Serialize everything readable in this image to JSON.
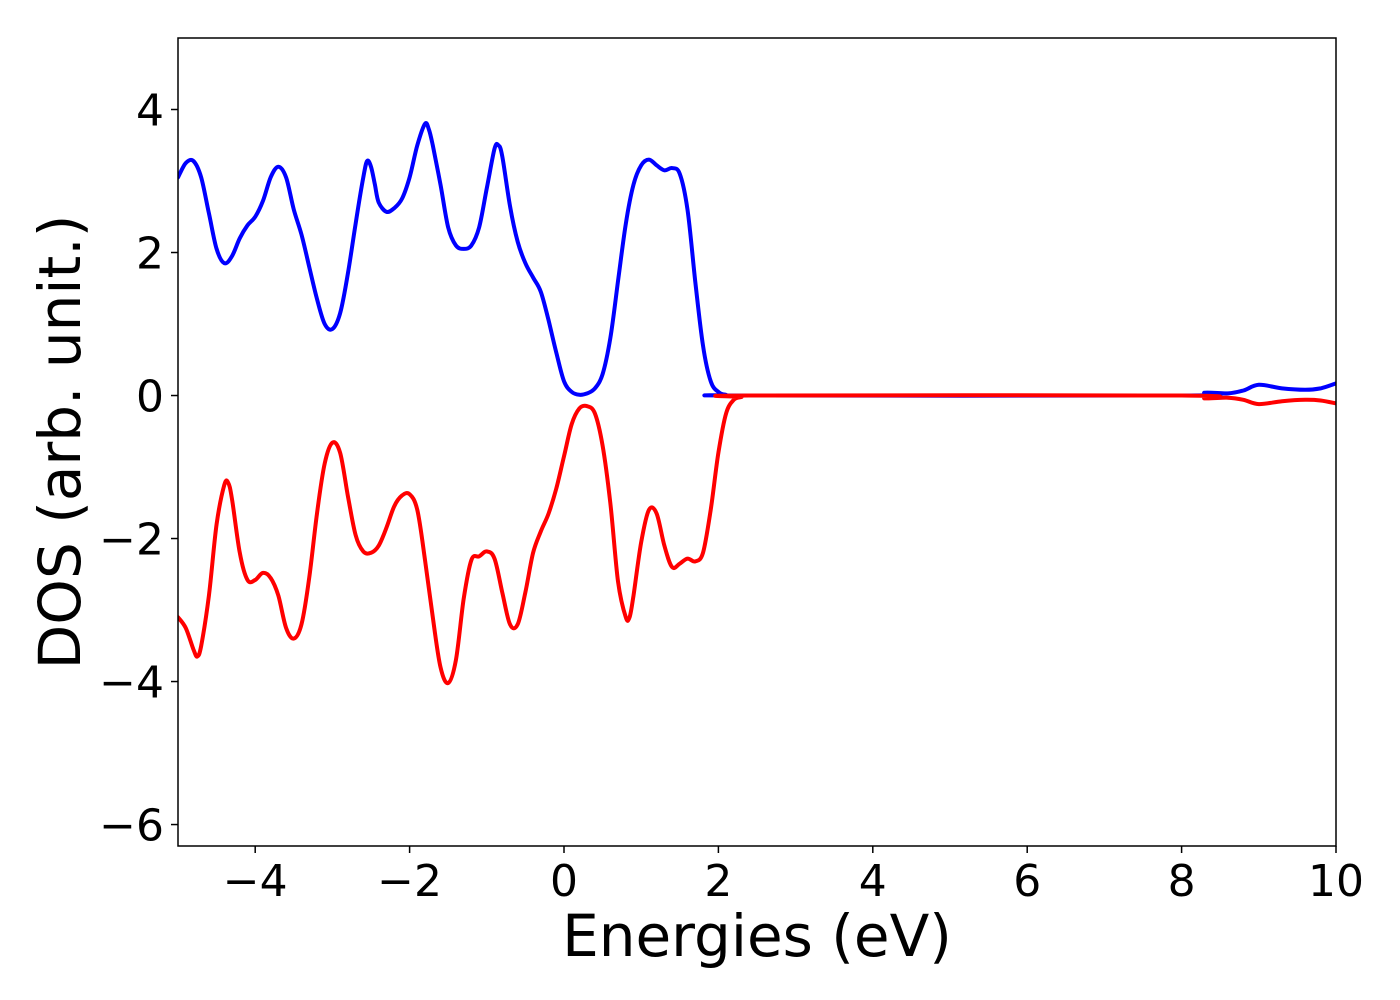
{
  "chart_data": {
    "type": "line",
    "xlabel": "Energies (eV)",
    "ylabel": "DOS (arb. unit.)",
    "xlim": [
      -5,
      10
    ],
    "ylim": [
      -6.3,
      5.0
    ],
    "xticks": [
      -4,
      -2,
      0,
      2,
      4,
      6,
      8,
      10
    ],
    "yticks": [
      -6,
      -4,
      -2,
      0,
      2,
      4
    ],
    "xtick_labels": [
      "−4",
      "−2",
      "0",
      "2",
      "4",
      "6",
      "8",
      "10"
    ],
    "ytick_labels": [
      "−6",
      "−4",
      "−2",
      "0",
      "2",
      "4"
    ],
    "grid": false,
    "series": [
      {
        "color": "#0000ff",
        "points": [
          [
            -5.0,
            3.05
          ],
          [
            -4.9,
            3.25
          ],
          [
            -4.8,
            3.28
          ],
          [
            -4.7,
            3.05
          ],
          [
            -4.6,
            2.55
          ],
          [
            -4.5,
            2.05
          ],
          [
            -4.4,
            1.85
          ],
          [
            -4.3,
            1.95
          ],
          [
            -4.2,
            2.2
          ],
          [
            -4.1,
            2.38
          ],
          [
            -4.0,
            2.5
          ],
          [
            -3.9,
            2.72
          ],
          [
            -3.8,
            3.05
          ],
          [
            -3.7,
            3.2
          ],
          [
            -3.6,
            3.05
          ],
          [
            -3.5,
            2.6
          ],
          [
            -3.4,
            2.25
          ],
          [
            -3.3,
            1.8
          ],
          [
            -3.2,
            1.35
          ],
          [
            -3.1,
            1.0
          ],
          [
            -3.0,
            0.93
          ],
          [
            -2.9,
            1.15
          ],
          [
            -2.8,
            1.7
          ],
          [
            -2.7,
            2.4
          ],
          [
            -2.6,
            3.05
          ],
          [
            -2.55,
            3.28
          ],
          [
            -2.5,
            3.2
          ],
          [
            -2.45,
            2.95
          ],
          [
            -2.4,
            2.7
          ],
          [
            -2.3,
            2.57
          ],
          [
            -2.2,
            2.62
          ],
          [
            -2.1,
            2.75
          ],
          [
            -2.0,
            3.05
          ],
          [
            -1.9,
            3.5
          ],
          [
            -1.8,
            3.8
          ],
          [
            -1.75,
            3.72
          ],
          [
            -1.7,
            3.5
          ],
          [
            -1.6,
            2.95
          ],
          [
            -1.5,
            2.35
          ],
          [
            -1.4,
            2.1
          ],
          [
            -1.3,
            2.05
          ],
          [
            -1.2,
            2.1
          ],
          [
            -1.1,
            2.35
          ],
          [
            -1.0,
            2.9
          ],
          [
            -0.9,
            3.45
          ],
          [
            -0.85,
            3.5
          ],
          [
            -0.8,
            3.35
          ],
          [
            -0.7,
            2.65
          ],
          [
            -0.6,
            2.15
          ],
          [
            -0.5,
            1.85
          ],
          [
            -0.4,
            1.65
          ],
          [
            -0.3,
            1.45
          ],
          [
            -0.2,
            1.05
          ],
          [
            -0.1,
            0.6
          ],
          [
            0.0,
            0.2
          ],
          [
            0.1,
            0.05
          ],
          [
            0.2,
            0.01
          ],
          [
            0.3,
            0.03
          ],
          [
            0.4,
            0.1
          ],
          [
            0.5,
            0.3
          ],
          [
            0.6,
            0.8
          ],
          [
            0.7,
            1.6
          ],
          [
            0.8,
            2.4
          ],
          [
            0.9,
            2.95
          ],
          [
            1.0,
            3.22
          ],
          [
            1.1,
            3.3
          ],
          [
            1.2,
            3.22
          ],
          [
            1.3,
            3.15
          ],
          [
            1.4,
            3.18
          ],
          [
            1.5,
            3.1
          ],
          [
            1.6,
            2.6
          ],
          [
            1.7,
            1.6
          ],
          [
            1.8,
            0.7
          ],
          [
            1.9,
            0.2
          ],
          [
            2.0,
            0.05
          ],
          [
            2.1,
            0.01
          ],
          [
            2.3,
            0.0
          ],
          [
            8.0,
            0.0
          ],
          [
            8.3,
            0.04
          ],
          [
            8.6,
            0.03
          ],
          [
            8.8,
            0.07
          ],
          [
            9.0,
            0.15
          ],
          [
            9.3,
            0.1
          ],
          [
            9.6,
            0.08
          ],
          [
            9.8,
            0.1
          ],
          [
            10.0,
            0.17
          ]
        ]
      },
      {
        "color": "#ff0000",
        "points": [
          [
            -5.0,
            -3.1
          ],
          [
            -4.9,
            -3.25
          ],
          [
            -4.8,
            -3.55
          ],
          [
            -4.75,
            -3.65
          ],
          [
            -4.7,
            -3.5
          ],
          [
            -4.6,
            -2.8
          ],
          [
            -4.5,
            -1.8
          ],
          [
            -4.4,
            -1.25
          ],
          [
            -4.35,
            -1.22
          ],
          [
            -4.3,
            -1.45
          ],
          [
            -4.2,
            -2.2
          ],
          [
            -4.1,
            -2.58
          ],
          [
            -4.0,
            -2.58
          ],
          [
            -3.9,
            -2.48
          ],
          [
            -3.8,
            -2.55
          ],
          [
            -3.7,
            -2.8
          ],
          [
            -3.6,
            -3.25
          ],
          [
            -3.5,
            -3.4
          ],
          [
            -3.4,
            -3.2
          ],
          [
            -3.3,
            -2.55
          ],
          [
            -3.2,
            -1.65
          ],
          [
            -3.1,
            -0.95
          ],
          [
            -3.0,
            -0.66
          ],
          [
            -2.9,
            -0.8
          ],
          [
            -2.8,
            -1.4
          ],
          [
            -2.7,
            -1.95
          ],
          [
            -2.6,
            -2.18
          ],
          [
            -2.5,
            -2.2
          ],
          [
            -2.4,
            -2.1
          ],
          [
            -2.3,
            -1.85
          ],
          [
            -2.2,
            -1.55
          ],
          [
            -2.1,
            -1.4
          ],
          [
            -2.0,
            -1.38
          ],
          [
            -1.9,
            -1.6
          ],
          [
            -1.8,
            -2.3
          ],
          [
            -1.7,
            -3.1
          ],
          [
            -1.6,
            -3.8
          ],
          [
            -1.5,
            -4.02
          ],
          [
            -1.4,
            -3.7
          ],
          [
            -1.3,
            -2.85
          ],
          [
            -1.2,
            -2.3
          ],
          [
            -1.1,
            -2.25
          ],
          [
            -1.0,
            -2.18
          ],
          [
            -0.9,
            -2.28
          ],
          [
            -0.8,
            -2.75
          ],
          [
            -0.7,
            -3.2
          ],
          [
            -0.6,
            -3.2
          ],
          [
            -0.5,
            -2.75
          ],
          [
            -0.4,
            -2.2
          ],
          [
            -0.3,
            -1.9
          ],
          [
            -0.2,
            -1.65
          ],
          [
            -0.1,
            -1.3
          ],
          [
            0.0,
            -0.85
          ],
          [
            0.1,
            -0.4
          ],
          [
            0.2,
            -0.18
          ],
          [
            0.3,
            -0.15
          ],
          [
            0.4,
            -0.25
          ],
          [
            0.5,
            -0.7
          ],
          [
            0.6,
            -1.5
          ],
          [
            0.7,
            -2.6
          ],
          [
            0.8,
            -3.1
          ],
          [
            0.85,
            -3.1
          ],
          [
            0.9,
            -2.8
          ],
          [
            1.0,
            -2.05
          ],
          [
            1.1,
            -1.6
          ],
          [
            1.2,
            -1.65
          ],
          [
            1.3,
            -2.1
          ],
          [
            1.4,
            -2.4
          ],
          [
            1.5,
            -2.35
          ],
          [
            1.6,
            -2.28
          ],
          [
            1.7,
            -2.32
          ],
          [
            1.8,
            -2.2
          ],
          [
            1.9,
            -1.6
          ],
          [
            2.0,
            -0.8
          ],
          [
            2.1,
            -0.25
          ],
          [
            2.2,
            -0.06
          ],
          [
            2.3,
            -0.02
          ],
          [
            2.4,
            0.0
          ],
          [
            8.0,
            0.0
          ],
          [
            8.3,
            -0.04
          ],
          [
            8.6,
            -0.03
          ],
          [
            8.8,
            -0.06
          ],
          [
            9.0,
            -0.12
          ],
          [
            9.3,
            -0.08
          ],
          [
            9.6,
            -0.06
          ],
          [
            9.8,
            -0.07
          ],
          [
            10.0,
            -0.11
          ]
        ]
      }
    ]
  }
}
